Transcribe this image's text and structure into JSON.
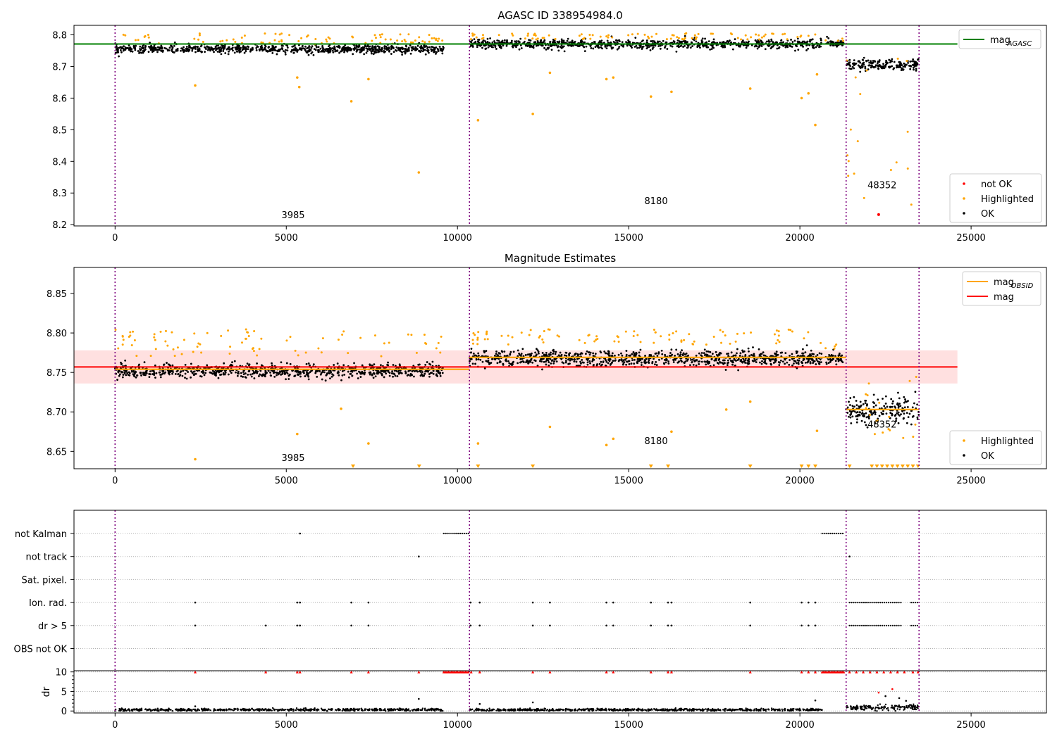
{
  "figure": {
    "title": "AGASC ID 338954984.0"
  },
  "chart_data": [
    {
      "type": "scatter",
      "title": "AGASC ID 338954984.0",
      "xlabel": "",
      "ylabel": "",
      "xlim": [
        -1200,
        27200
      ],
      "ylim": [
        8.196,
        8.83
      ],
      "xticks": [
        0,
        5000,
        10000,
        15000,
        20000,
        25000
      ],
      "yticks": [
        8.2,
        8.3,
        8.4,
        8.5,
        8.6,
        8.7,
        8.8
      ],
      "obs_boundaries": [
        0,
        10350,
        21350,
        23480
      ],
      "obs_labels": [
        {
          "text": "3985",
          "x": 5200,
          "y": 8.22
        },
        {
          "text": "8180",
          "x": 15800,
          "y": 8.265
        },
        {
          "text": "48352",
          "x": 22400,
          "y": 8.315
        }
      ],
      "lines": [
        {
          "name": "mag_AGASC",
          "label_main": "mag",
          "label_sub": "AGASC",
          "color": "#008000",
          "x": [
            -1200,
            24600
          ],
          "y": [
            8.771,
            8.771
          ]
        }
      ],
      "observations": [
        {
          "x_range": [
            0,
            9600
          ],
          "ok_mean": 8.755,
          "ok_spread": 0.012,
          "highlight_range": [
            8.77,
            8.805
          ]
        },
        {
          "x_range": [
            10350,
            20650
          ],
          "ok_mean": 8.771,
          "ok_spread": 0.013,
          "highlight_range": [
            8.785,
            8.805
          ]
        },
        {
          "x_range": [
            20750,
            21280
          ],
          "ok_mean": 8.775,
          "ok_spread": 0.01,
          "highlight_range": [
            8.78,
            8.79
          ]
        },
        {
          "x_range": [
            21350,
            23480
          ],
          "ok_mean": 8.705,
          "ok_spread": 0.015,
          "highlight_range": [
            8.25,
            8.75
          ]
        }
      ],
      "highlighted_outliers": [
        {
          "x": 2340,
          "y": 8.64
        },
        {
          "x": 5320,
          "y": 8.665
        },
        {
          "x": 5380,
          "y": 8.635
        },
        {
          "x": 6900,
          "y": 8.59
        },
        {
          "x": 7400,
          "y": 8.66
        },
        {
          "x": 8870,
          "y": 8.365
        },
        {
          "x": 10600,
          "y": 8.53
        },
        {
          "x": 12200,
          "y": 8.55
        },
        {
          "x": 12700,
          "y": 8.68
        },
        {
          "x": 14350,
          "y": 8.66
        },
        {
          "x": 14550,
          "y": 8.665
        },
        {
          "x": 15650,
          "y": 8.605
        },
        {
          "x": 16250,
          "y": 8.62
        },
        {
          "x": 18550,
          "y": 8.63
        },
        {
          "x": 20050,
          "y": 8.6
        },
        {
          "x": 20250,
          "y": 8.615
        },
        {
          "x": 20450,
          "y": 8.515
        },
        {
          "x": 20500,
          "y": 8.675
        }
      ],
      "not_ok_points": [
        {
          "x": 22300,
          "y": 8.232
        }
      ],
      "legend": {
        "top": [
          {
            "label_main": "mag",
            "label_sub": "AGASC",
            "color": "#008000",
            "kind": "line"
          }
        ],
        "bottom": [
          {
            "label": "not OK",
            "color": "#ff0000",
            "kind": "dot"
          },
          {
            "label": "Highlighted",
            "color": "#ffa500",
            "kind": "dot"
          },
          {
            "label": "OK",
            "color": "#000000",
            "kind": "dot"
          }
        ]
      }
    },
    {
      "type": "scatter",
      "title": "Magnitude Estimates",
      "xlabel": "",
      "ylabel": "",
      "xlim": [
        -1200,
        27200
      ],
      "ylim": [
        8.628,
        8.883
      ],
      "xticks": [
        0,
        5000,
        10000,
        15000,
        20000,
        25000
      ],
      "yticks": [
        8.65,
        8.7,
        8.75,
        8.8,
        8.85
      ],
      "obs_boundaries": [
        0,
        10350,
        21350,
        23480
      ],
      "obs_labels": [
        {
          "text": "3985",
          "x": 5200,
          "y": 8.638
        },
        {
          "text": "8180",
          "x": 15800,
          "y": 8.659
        },
        {
          "text": "48352",
          "x": 22400,
          "y": 8.68
        }
      ],
      "mag": {
        "value": 8.757,
        "band": [
          8.736,
          8.778
        ],
        "x_range": [
          -1200,
          24600
        ],
        "color": "#ff0000"
      },
      "mag_obsid": [
        {
          "x_range": [
            0,
            9600
          ],
          "value": 8.754
        },
        {
          "x_range": [
            9600,
            10350
          ],
          "value": 8.754
        },
        {
          "x_range": [
            10350,
            21350
          ],
          "value": 8.769
        },
        {
          "x_range": [
            21350,
            23480
          ],
          "value": 8.703
        }
      ],
      "observations": [
        {
          "x_range": [
            0,
            9600
          ],
          "ok_mean": 8.752,
          "ok_spread": 0.008,
          "highlight_range": [
            8.77,
            8.805
          ]
        },
        {
          "x_range": [
            10350,
            20650
          ],
          "ok_mean": 8.768,
          "ok_spread": 0.009,
          "highlight_range": [
            8.785,
            8.805
          ]
        },
        {
          "x_range": [
            20750,
            21280
          ],
          "ok_mean": 8.768,
          "ok_spread": 0.008,
          "highlight_range": [
            8.78,
            8.79
          ]
        },
        {
          "x_range": [
            21350,
            23480
          ],
          "ok_mean": 8.703,
          "ok_spread": 0.015,
          "highlight_range": [
            8.63,
            8.75
          ]
        }
      ],
      "highlighted_outliers": [
        {
          "x": 2340,
          "y": 8.64
        },
        {
          "x": 5320,
          "y": 8.672
        },
        {
          "x": 6600,
          "y": 8.704
        },
        {
          "x": 7400,
          "y": 8.66
        },
        {
          "x": 10600,
          "y": 8.66
        },
        {
          "x": 12700,
          "y": 8.681
        },
        {
          "x": 14350,
          "y": 8.658
        },
        {
          "x": 14550,
          "y": 8.666
        },
        {
          "x": 16250,
          "y": 8.675
        },
        {
          "x": 17850,
          "y": 8.703
        },
        {
          "x": 18550,
          "y": 8.713
        },
        {
          "x": 20500,
          "y": 8.676
        }
      ],
      "below_range_markers": [
        6950,
        8880,
        10600,
        12200,
        15650,
        16150,
        18550,
        20050,
        20250,
        20450,
        21450,
        22100,
        22250,
        22400,
        22550,
        22700,
        22850,
        23000,
        23150,
        23300,
        23450
      ],
      "legend": {
        "top": [
          {
            "label_main": "mag",
            "label_sub": "OBSID",
            "color": "#ffa500",
            "kind": "line"
          },
          {
            "label_main": "mag",
            "label_sub": "",
            "color": "#ff0000",
            "kind": "line"
          }
        ],
        "bottom": [
          {
            "label": "Highlighted",
            "color": "#ffa500",
            "kind": "dot"
          },
          {
            "label": "OK",
            "color": "#000000",
            "kind": "dot"
          }
        ]
      }
    },
    {
      "type": "scatter",
      "title": "",
      "xlabel": "",
      "ylabel": "",
      "xlim": [
        -1200,
        27200
      ],
      "flag_rows": [
        "not Kalman",
        "not track",
        "Sat. pixel.",
        "Ion. rad.",
        "dr > 5",
        "OBS not OK"
      ],
      "obs_boundaries": [
        0,
        10350,
        21350,
        23480
      ],
      "flags": {
        "not Kalman": {
          "points": [
            5400
          ],
          "ranges": [
            [
              9600,
              10350
            ],
            [
              20650,
              21280
            ]
          ]
        },
        "not track": {
          "points": [
            8870,
            21450
          ],
          "ranges": []
        },
        "Sat. pixel.": {
          "points": [],
          "ranges": []
        },
        "Ion. rad.": {
          "points": [
            2340,
            5320,
            5400,
            6900,
            7400,
            10380,
            10650,
            12200,
            12700,
            14350,
            14550,
            15650,
            16150,
            16250,
            18550,
            20050,
            20250,
            20450
          ],
          "ranges": [
            [
              21450,
              22950
            ],
            [
              23250,
              23450
            ]
          ]
        },
        "dr > 5": {
          "points": [
            2340,
            4400,
            5320,
            5400,
            6900,
            7400,
            10380,
            10650,
            12200,
            12700,
            14350,
            14550,
            15650,
            16150,
            16250,
            18550,
            20050,
            20250,
            20450
          ],
          "ranges": [
            [
              21450,
              22950
            ],
            [
              23250,
              23450
            ]
          ]
        },
        "OBS not OK": {
          "points": [],
          "ranges": []
        }
      }
    },
    {
      "type": "scatter",
      "title": "",
      "xlabel": "",
      "ylabel": "dr",
      "xlim": [
        -1200,
        27200
      ],
      "ylim": [
        -0.5,
        10.3
      ],
      "xticks": [
        0,
        5000,
        10000,
        15000,
        20000,
        25000
      ],
      "yticks": [
        0,
        5,
        10
      ],
      "obs_boundaries": [
        0,
        10350,
        21350,
        23480
      ],
      "clipped_at": 10,
      "clipped_points": [
        2340,
        4400,
        5320,
        5400,
        6900,
        7400,
        8870,
        10400,
        10650,
        12200,
        12700,
        14350,
        14550,
        15650,
        16150,
        16250,
        18550,
        20050,
        20250,
        20450,
        21450,
        21650,
        21850,
        22050,
        22250,
        22450,
        22650,
        22850,
        23050,
        23300,
        23450
      ],
      "clipped_ranges": [
        [
          9600,
          10350
        ],
        [
          20650,
          21280
        ]
      ],
      "observations": [
        {
          "x_range": [
            0,
            9600
          ],
          "mean": 0.3,
          "spread": 0.25
        },
        {
          "x_range": [
            10350,
            20650
          ],
          "mean": 0.3,
          "spread": 0.25
        },
        {
          "x_range": [
            21350,
            23480
          ],
          "mean": 0.8,
          "spread": 0.6
        }
      ],
      "scattered_points": [
        {
          "x": 8870,
          "y": 3.1
        },
        {
          "x": 12200,
          "y": 2.2
        },
        {
          "x": 10650,
          "y": 1.8
        },
        {
          "x": 20450,
          "y": 2.7
        },
        {
          "x": 2340,
          "y": 1.2
        },
        {
          "x": 22300,
          "y": 4.7
        },
        {
          "x": 22700,
          "y": 5.6
        },
        {
          "x": 22500,
          "y": 3.8
        },
        {
          "x": 22900,
          "y": 3.3
        },
        {
          "x": 23100,
          "y": 2.6
        }
      ]
    }
  ]
}
